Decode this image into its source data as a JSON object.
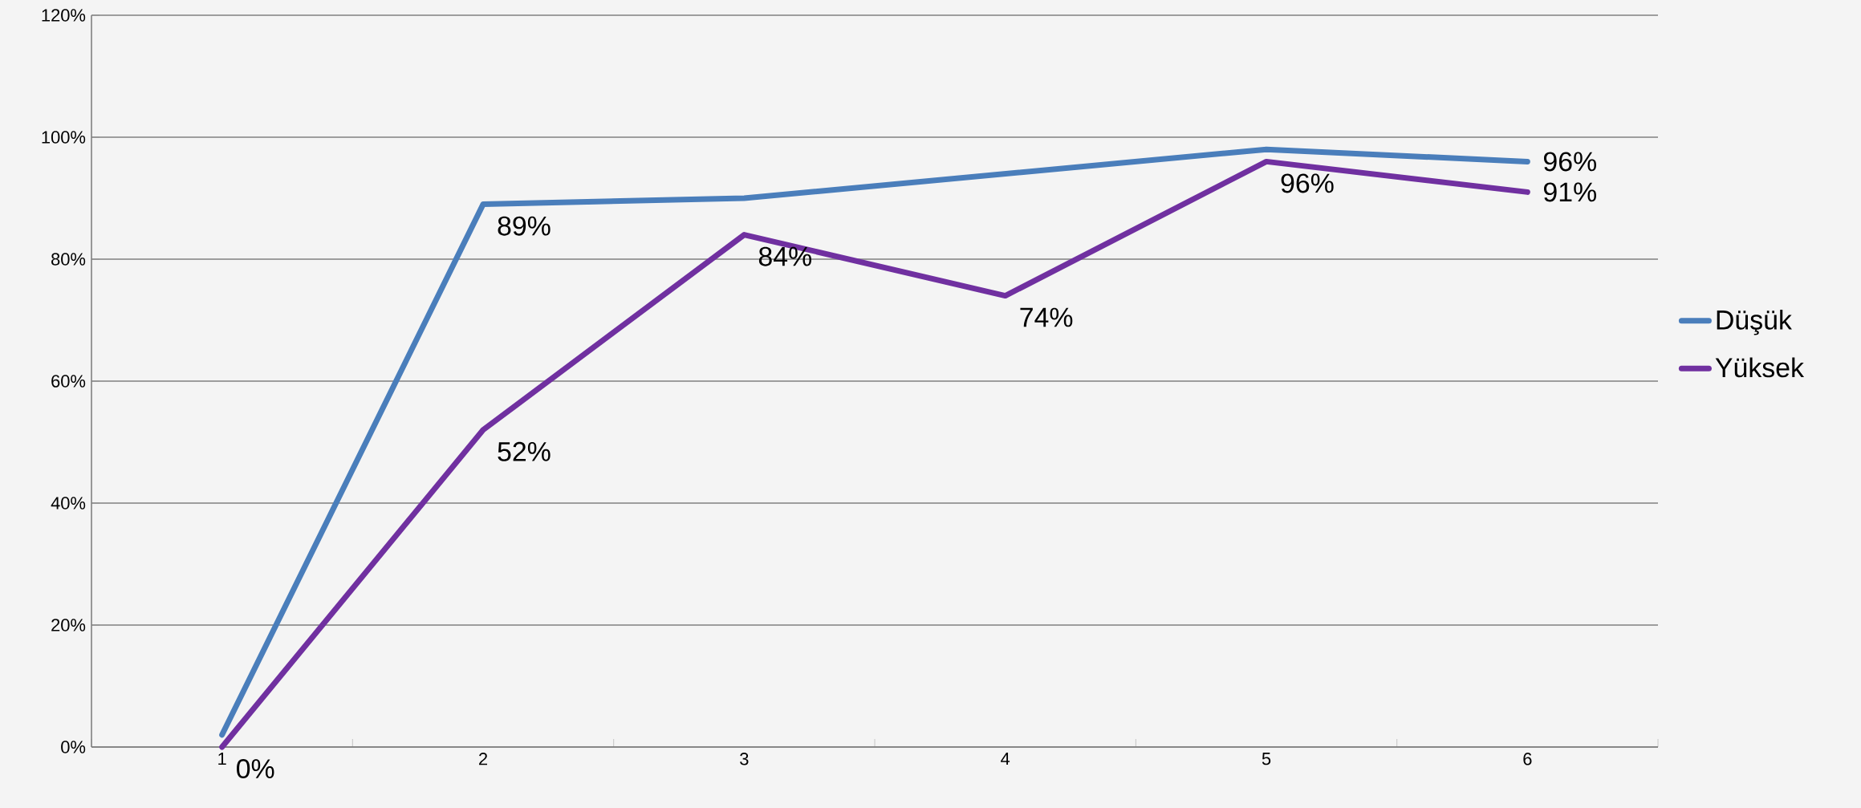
{
  "chart_data": {
    "type": "line",
    "categories": [
      "1",
      "2",
      "3",
      "4",
      "5",
      "6"
    ],
    "ylim": [
      0,
      120
    ],
    "yticks": [
      {
        "value": 0,
        "label": "0%"
      },
      {
        "value": 20,
        "label": "20%"
      },
      {
        "value": 40,
        "label": "40%"
      },
      {
        "value": 60,
        "label": "60%"
      },
      {
        "value": 80,
        "label": "80%"
      },
      {
        "value": 100,
        "label": "100%"
      },
      {
        "value": 120,
        "label": "120%"
      }
    ],
    "series": [
      {
        "name": "Düşük",
        "color": "#4a7ebb",
        "values": [
          2,
          89,
          90,
          94,
          98,
          96
        ],
        "value_labels": [
          null,
          "89%",
          null,
          null,
          null,
          "96%"
        ]
      },
      {
        "name": "Yüksek",
        "color": "#7030a0",
        "values": [
          0,
          52,
          84,
          74,
          96,
          91
        ],
        "value_labels": [
          "0%",
          "52%",
          "84%",
          "74%",
          "96%",
          "91%"
        ]
      }
    ],
    "grid": "y",
    "legend": "right",
    "marker": "none",
    "line_style": "solid"
  }
}
